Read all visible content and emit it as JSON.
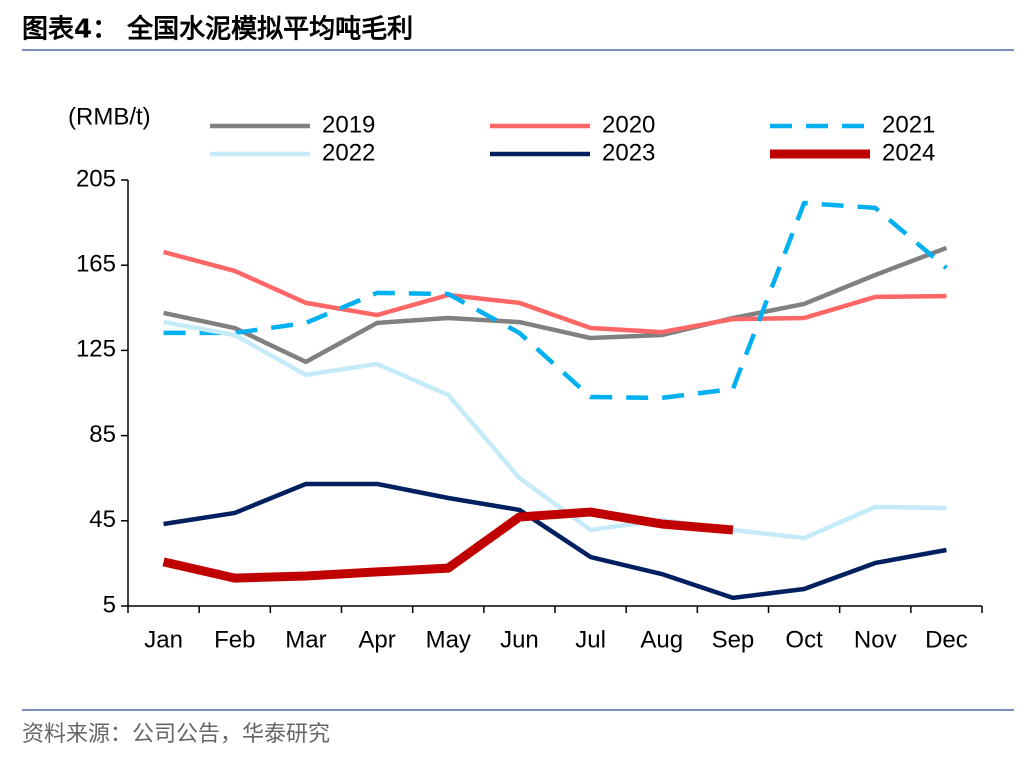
{
  "page": {
    "title": "图表4：  全国水泥模拟平均吨毛利",
    "source": "资料来源：公司公告，华泰研究"
  },
  "chart_data": {
    "type": "line",
    "y_label": "(RMB/t)",
    "categories": [
      "Jan",
      "Feb",
      "Mar",
      "Apr",
      "May",
      "Jun",
      "Jul",
      "Aug",
      "Sep",
      "Oct",
      "Nov",
      "Dec"
    ],
    "ylim": [
      5,
      205
    ],
    "yticks": [
      5,
      45,
      85,
      125,
      165,
      205
    ],
    "series": [
      {
        "name": "2019",
        "color": "#808080",
        "values": [
          142.6,
          135.5,
          119.6,
          137.9,
          140.2,
          138.3,
          130.8,
          132.2,
          140.2,
          146.8,
          160.4,
          173.1
        ]
      },
      {
        "name": "2020",
        "color": "#ff6666",
        "values": [
          171.2,
          162.3,
          147.3,
          141.6,
          151.0,
          147.3,
          135.5,
          133.6,
          139.7,
          140.2,
          150.1,
          150.5
        ]
      },
      {
        "name": "2021",
        "color": "#00b0f0",
        "dashed": true,
        "values": [
          133.2,
          133.2,
          137.9,
          152.0,
          151.5,
          133.2,
          103.1,
          102.7,
          106.9,
          194.2,
          191.9,
          163.7
        ]
      },
      {
        "name": "2022",
        "color": "#c5eaf8",
        "values": [
          138.3,
          132.2,
          113.5,
          118.6,
          104.1,
          65.1,
          40.7,
          45.4,
          40.7,
          36.9,
          51.5,
          51.0
        ]
      },
      {
        "name": "2023",
        "color": "#002060",
        "values": [
          43.5,
          48.7,
          62.3,
          62.3,
          55.7,
          50.1,
          28.0,
          20.0,
          8.8,
          13.0,
          25.2,
          31.3
        ]
      },
      {
        "name": "2024",
        "color": "#c00000",
        "thick": true,
        "values": [
          25.7,
          18.1,
          19.1,
          21.0,
          22.8,
          46.8,
          49.1,
          43.5,
          40.7,
          null,
          null,
          null
        ]
      }
    ]
  }
}
